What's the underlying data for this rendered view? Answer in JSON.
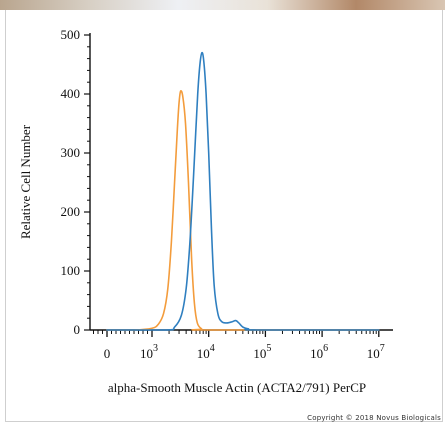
{
  "chart_data": {
    "type": "line",
    "title": "",
    "xlabel": "alpha-Smooth Muscle Actin (ACTA2/791) PerCP",
    "ylabel": "Relative Cell Number",
    "x_scale": "biexponential-log",
    "xlim": [
      0,
      10000000
    ],
    "ylim": [
      0,
      500
    ],
    "y_ticks": [
      0,
      100,
      200,
      300,
      400,
      500
    ],
    "x_ticks": [
      {
        "value": 0,
        "base": "0",
        "exp": ""
      },
      {
        "value": 1000,
        "base": "10",
        "exp": "3"
      },
      {
        "value": 10000,
        "base": "10",
        "exp": "4"
      },
      {
        "value": 100000,
        "base": "10",
        "exp": "5"
      },
      {
        "value": 1000000,
        "base": "10",
        "exp": "6"
      },
      {
        "value": 10000000,
        "base": "10",
        "exp": "7"
      }
    ],
    "grid": false,
    "legend": "none",
    "series": [
      {
        "color": "#f39c3c",
        "points": [
          [
            0,
            0
          ],
          [
            600,
            0
          ],
          [
            1000,
            3
          ],
          [
            1300,
            10
          ],
          [
            1600,
            28
          ],
          [
            1900,
            70
          ],
          [
            2200,
            150
          ],
          [
            2500,
            250
          ],
          [
            2800,
            340
          ],
          [
            3000,
            385
          ],
          [
            3200,
            405
          ],
          [
            3500,
            395
          ],
          [
            3900,
            350
          ],
          [
            4400,
            250
          ],
          [
            5000,
            120
          ],
          [
            5600,
            45
          ],
          [
            6300,
            12
          ],
          [
            7500,
            2
          ],
          [
            9000,
            0
          ],
          [
            10000000,
            0
          ]
        ]
      },
      {
        "color": "#2f7fc0",
        "points": [
          [
            0,
            0
          ],
          [
            1800,
            0
          ],
          [
            2500,
            5
          ],
          [
            3300,
            25
          ],
          [
            4000,
            70
          ],
          [
            4600,
            140
          ],
          [
            5200,
            230
          ],
          [
            5800,
            320
          ],
          [
            6400,
            400
          ],
          [
            7000,
            450
          ],
          [
            7600,
            470
          ],
          [
            8200,
            455
          ],
          [
            9000,
            400
          ],
          [
            10000,
            300
          ],
          [
            11200,
            170
          ],
          [
            12500,
            75
          ],
          [
            14500,
            28
          ],
          [
            17000,
            14
          ],
          [
            21000,
            12
          ],
          [
            26000,
            14
          ],
          [
            30000,
            16
          ],
          [
            34000,
            12
          ],
          [
            40000,
            5
          ],
          [
            50000,
            2
          ],
          [
            70000,
            0
          ],
          [
            10000000,
            0
          ]
        ]
      }
    ]
  },
  "copyright": "Copyright © 2018 Novus Biologicals"
}
